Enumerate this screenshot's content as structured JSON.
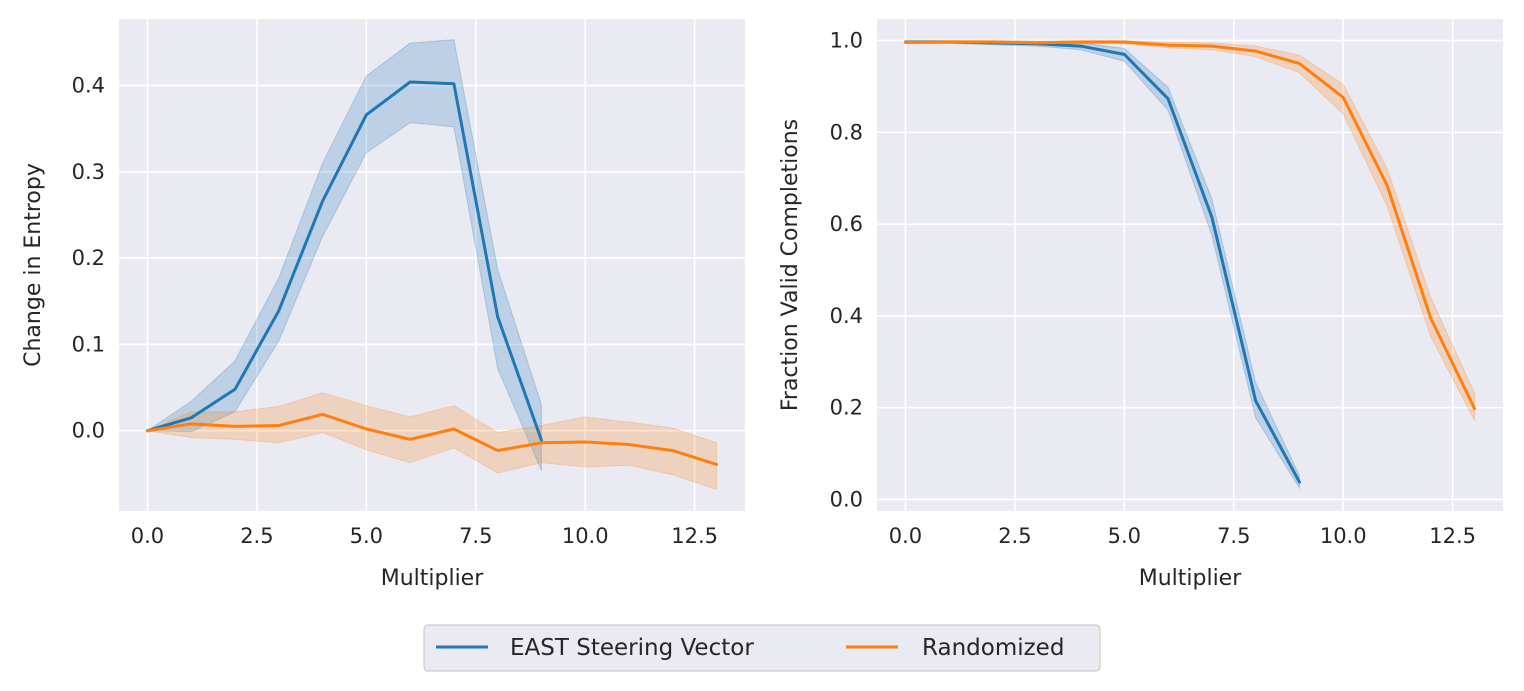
{
  "colors": {
    "east": "#1f77b4",
    "random": "#ff7f0e",
    "panel": "#eaeaf2",
    "grid": "#ffffff"
  },
  "legend": {
    "items": [
      "EAST Steering Vector",
      "Randomized"
    ]
  },
  "chart_data": [
    {
      "type": "line",
      "xlabel": "Multiplier",
      "ylabel": "Change in Entropy",
      "xlim": [
        -0.65,
        13.65
      ],
      "ylim": [
        -0.093,
        0.477
      ],
      "xticks": [
        0.0,
        2.5,
        5.0,
        7.5,
        10.0,
        12.5
      ],
      "xtick_labels": [
        "0.0",
        "2.5",
        "5.0",
        "7.5",
        "10.0",
        "12.5"
      ],
      "yticks": [
        0.0,
        0.1,
        0.2,
        0.3,
        0.4
      ],
      "ytick_labels": [
        "0.0",
        "0.1",
        "0.2",
        "0.3",
        "0.4"
      ],
      "grid": true,
      "series": [
        {
          "name": "EAST Steering Vector",
          "color": "#1f77b4",
          "x": [
            0,
            1,
            2,
            3,
            4,
            5,
            6,
            7,
            8,
            9
          ],
          "y": [
            0.0,
            0.015,
            0.048,
            0.139,
            0.266,
            0.366,
            0.404,
            0.402,
            0.132,
            -0.011
          ],
          "lower": [
            0.0,
            -0.001,
            0.022,
            0.104,
            0.225,
            0.322,
            0.357,
            0.352,
            0.072,
            -0.046
          ],
          "upper": [
            0.0,
            0.034,
            0.081,
            0.177,
            0.31,
            0.411,
            0.449,
            0.453,
            0.187,
            0.03
          ]
        },
        {
          "name": "Randomized",
          "color": "#ff7f0e",
          "x": [
            0,
            1,
            2,
            3,
            4,
            5,
            6,
            7,
            8,
            9,
            10,
            11,
            12,
            13
          ],
          "y": [
            0.0,
            0.008,
            0.005,
            0.006,
            0.019,
            0.002,
            -0.01,
            0.002,
            -0.023,
            -0.014,
            -0.013,
            -0.016,
            -0.023,
            -0.039
          ],
          "lower": [
            0.0,
            -0.008,
            -0.01,
            -0.014,
            -0.002,
            -0.022,
            -0.037,
            -0.02,
            -0.049,
            -0.037,
            -0.042,
            -0.04,
            -0.051,
            -0.068
          ],
          "upper": [
            0.0,
            0.022,
            0.022,
            0.028,
            0.044,
            0.029,
            0.016,
            0.029,
            -0.002,
            0.006,
            0.016,
            0.01,
            0.003,
            -0.014
          ]
        }
      ]
    },
    {
      "type": "line",
      "xlabel": "Multiplier",
      "ylabel": "Fraction Valid Completions",
      "xlim": [
        -0.65,
        13.65
      ],
      "ylim": [
        -0.025,
        1.047
      ],
      "xticks": [
        0.0,
        2.5,
        5.0,
        7.5,
        10.0,
        12.5
      ],
      "xtick_labels": [
        "0.0",
        "2.5",
        "5.0",
        "7.5",
        "10.0",
        "12.5"
      ],
      "yticks": [
        0.0,
        0.2,
        0.4,
        0.6,
        0.8,
        1.0
      ],
      "ytick_labels": [
        "0.0",
        "0.2",
        "0.4",
        "0.6",
        "0.8",
        "1.0"
      ],
      "grid": true,
      "series": [
        {
          "name": "EAST Steering Vector",
          "color": "#1f77b4",
          "x": [
            0,
            1,
            2,
            3,
            4,
            5,
            6,
            7,
            8,
            9
          ],
          "y": [
            0.997,
            0.997,
            0.995,
            0.993,
            0.988,
            0.97,
            0.873,
            0.615,
            0.215,
            0.038
          ],
          "lower": [
            0.994,
            0.994,
            0.991,
            0.988,
            0.98,
            0.955,
            0.848,
            0.575,
            0.178,
            0.025
          ],
          "upper": [
            1.0,
            1.0,
            0.999,
            0.998,
            0.995,
            0.983,
            0.898,
            0.655,
            0.255,
            0.052
          ]
        },
        {
          "name": "Randomized",
          "color": "#ff7f0e",
          "x": [
            0,
            1,
            2,
            3,
            4,
            5,
            6,
            7,
            8,
            9,
            10,
            11,
            12,
            13
          ],
          "y": [
            0.996,
            0.997,
            0.997,
            0.995,
            0.997,
            0.997,
            0.99,
            0.988,
            0.977,
            0.95,
            0.876,
            0.685,
            0.395,
            0.198
          ],
          "lower": [
            0.993,
            0.994,
            0.994,
            0.991,
            0.993,
            0.993,
            0.984,
            0.98,
            0.965,
            0.93,
            0.84,
            0.64,
            0.355,
            0.172
          ],
          "upper": [
            0.999,
            1.0,
            1.0,
            0.999,
            1.0,
            1.0,
            0.996,
            0.995,
            0.988,
            0.968,
            0.905,
            0.722,
            0.44,
            0.232
          ]
        }
      ]
    }
  ]
}
